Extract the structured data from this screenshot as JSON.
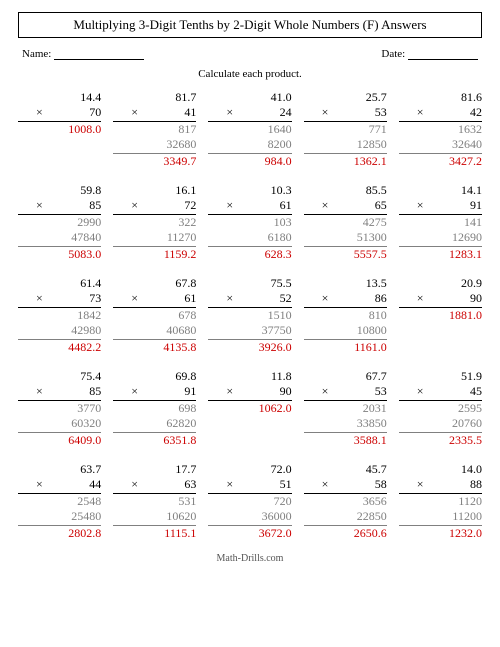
{
  "title": "Multiplying 3-Digit Tenths by 2-Digit Whole Numbers (F) Answers",
  "name_label": "Name:",
  "date_label": "Date:",
  "instruction": "Calculate each product.",
  "footer": "Math-Drills.com",
  "mult_symbol": "×",
  "colors": {
    "partial": "#808080",
    "answer": "#cc0000",
    "text": "#000000",
    "background": "#ffffff"
  },
  "problems": [
    {
      "a": "14.4",
      "b": "70",
      "partials": [
        "1008.0"
      ],
      "answer": null
    },
    {
      "a": "81.7",
      "b": "41",
      "partials": [
        "817",
        "32680"
      ],
      "answer": "3349.7"
    },
    {
      "a": "41.0",
      "b": "24",
      "partials": [
        "1640",
        "8200"
      ],
      "answer": "984.0"
    },
    {
      "a": "25.7",
      "b": "53",
      "partials": [
        "771",
        "12850"
      ],
      "answer": "1362.1"
    },
    {
      "a": "81.6",
      "b": "42",
      "partials": [
        "1632",
        "32640"
      ],
      "answer": "3427.2"
    },
    {
      "a": "59.8",
      "b": "85",
      "partials": [
        "2990",
        "47840"
      ],
      "answer": "5083.0"
    },
    {
      "a": "16.1",
      "b": "72",
      "partials": [
        "322",
        "11270"
      ],
      "answer": "1159.2"
    },
    {
      "a": "10.3",
      "b": "61",
      "partials": [
        "103",
        "6180"
      ],
      "answer": "628.3"
    },
    {
      "a": "85.5",
      "b": "65",
      "partials": [
        "4275",
        "51300"
      ],
      "answer": "5557.5"
    },
    {
      "a": "14.1",
      "b": "91",
      "partials": [
        "141",
        "12690"
      ],
      "answer": "1283.1"
    },
    {
      "a": "61.4",
      "b": "73",
      "partials": [
        "1842",
        "42980"
      ],
      "answer": "4482.2"
    },
    {
      "a": "67.8",
      "b": "61",
      "partials": [
        "678",
        "40680"
      ],
      "answer": "4135.8"
    },
    {
      "a": "75.5",
      "b": "52",
      "partials": [
        "1510",
        "37750"
      ],
      "answer": "3926.0"
    },
    {
      "a": "13.5",
      "b": "86",
      "partials": [
        "810",
        "10800"
      ],
      "answer": "1161.0"
    },
    {
      "a": "20.9",
      "b": "90",
      "partials": [
        "1881.0"
      ],
      "answer": null
    },
    {
      "a": "75.4",
      "b": "85",
      "partials": [
        "3770",
        "60320"
      ],
      "answer": "6409.0"
    },
    {
      "a": "69.8",
      "b": "91",
      "partials": [
        "698",
        "62820"
      ],
      "answer": "6351.8"
    },
    {
      "a": "11.8",
      "b": "90",
      "partials": [
        "1062.0"
      ],
      "answer": null
    },
    {
      "a": "67.7",
      "b": "53",
      "partials": [
        "2031",
        "33850"
      ],
      "answer": "3588.1"
    },
    {
      "a": "51.9",
      "b": "45",
      "partials": [
        "2595",
        "20760"
      ],
      "answer": "2335.5"
    },
    {
      "a": "63.7",
      "b": "44",
      "partials": [
        "2548",
        "25480"
      ],
      "answer": "2802.8"
    },
    {
      "a": "17.7",
      "b": "63",
      "partials": [
        "531",
        "10620"
      ],
      "answer": "1115.1"
    },
    {
      "a": "72.0",
      "b": "51",
      "partials": [
        "720",
        "36000"
      ],
      "answer": "3672.0"
    },
    {
      "a": "45.7",
      "b": "58",
      "partials": [
        "3656",
        "22850"
      ],
      "answer": "2650.6"
    },
    {
      "a": "14.0",
      "b": "88",
      "partials": [
        "1120",
        "11200"
      ],
      "answer": "1232.0"
    }
  ]
}
